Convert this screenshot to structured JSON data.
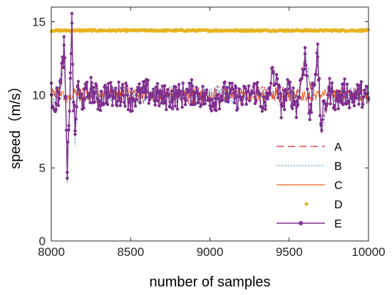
{
  "chart_data": {
    "type": "line",
    "xlabel": "number of samples",
    "ylabel": "speed（m/s）",
    "xlim": [
      8000,
      10000
    ],
    "ylim": [
      0,
      16
    ],
    "x_ticks": [
      8000,
      8500,
      9000,
      9500,
      10000
    ],
    "y_ticks": [
      0,
      5,
      10,
      15
    ],
    "x_tick_labels": [
      "8000",
      "8500",
      "9000",
      "9500",
      "10000"
    ],
    "y_tick_labels": [
      "0",
      "5",
      "10",
      "15"
    ],
    "grid": false,
    "legend_position": "bottom-right",
    "colors": {
      "A": "#d62728",
      "B": "#2f7fc1",
      "C": "#e8601c",
      "D": "#e9b320",
      "E": "#7e2f8e"
    },
    "series": [
      {
        "name": "A",
        "style": "dashed",
        "x": [
          8000,
          8030,
          8060,
          8080,
          8090,
          8100,
          8110,
          8120,
          8130,
          8140,
          8150,
          8165,
          8180,
          8200,
          8250,
          8300,
          8400,
          8500,
          8600,
          8700,
          8800,
          8900,
          9000,
          9100,
          9200,
          9300,
          9400,
          9450,
          9500,
          9550,
          9600,
          9650,
          9680,
          9700,
          9750,
          9800,
          9850,
          9900,
          9950,
          10000
        ],
        "y": [
          10.0,
          9.7,
          10.5,
          12.8,
          10.0,
          4.1,
          7.6,
          11.8,
          14.9,
          9.7,
          7.2,
          10.4,
          10.1,
          9.9,
          10.2,
          9.9,
          10.0,
          10.1,
          9.8,
          10.0,
          10.0,
          9.9,
          10.0,
          10.1,
          9.8,
          10.0,
          10.2,
          9.9,
          10.1,
          9.8,
          12.3,
          9.8,
          12.9,
          7.6,
          10.1,
          9.9,
          10.0,
          10.1,
          9.9,
          10.0
        ]
      },
      {
        "name": "B",
        "style": "dotted",
        "x": [
          8000,
          8030,
          8060,
          8080,
          8090,
          8100,
          8110,
          8120,
          8130,
          8140,
          8150,
          8165,
          8180,
          8200,
          8250,
          8300,
          8400,
          8500,
          8600,
          8700,
          8800,
          8900,
          9000,
          9100,
          9200,
          9300,
          9400,
          9450,
          9500,
          9550,
          9600,
          9650,
          9680,
          9700,
          9750,
          9800,
          9850,
          9900,
          9950,
          10000
        ],
        "y": [
          10.0,
          9.6,
          10.6,
          12.9,
          10.1,
          4.0,
          7.5,
          11.9,
          15.1,
          9.6,
          7.1,
          10.5,
          10.0,
          9.9,
          10.2,
          9.9,
          10.0,
          10.1,
          9.8,
          10.0,
          10.0,
          9.9,
          10.0,
          10.1,
          9.8,
          10.0,
          10.2,
          9.9,
          10.1,
          9.8,
          12.4,
          9.8,
          13.0,
          7.5,
          10.1,
          9.9,
          10.0,
          10.1,
          9.9,
          10.0
        ]
      },
      {
        "name": "C",
        "style": "solid",
        "x": [
          8000,
          8050,
          8100,
          8150,
          8200,
          8250,
          8300,
          8400,
          8500,
          8600,
          8700,
          8800,
          8900,
          9000,
          9100,
          9200,
          9300,
          9400,
          9500,
          9600,
          9700,
          9800,
          9900,
          10000
        ],
        "y": [
          9.9,
          10.3,
          9.6,
          10.2,
          9.8,
          10.1,
          9.9,
          10.0,
          10.1,
          9.9,
          10.0,
          9.9,
          10.1,
          9.9,
          10.0,
          10.1,
          9.9,
          10.0,
          10.1,
          9.9,
          10.0,
          10.1,
          9.9,
          10.0
        ]
      },
      {
        "name": "D",
        "style": "points",
        "x": [
          8000,
          10000
        ],
        "y": [
          14.4,
          14.4
        ]
      },
      {
        "name": "E",
        "style": "solid-marker",
        "x": [
          8000,
          8030,
          8060,
          8080,
          8090,
          8100,
          8110,
          8120,
          8130,
          8140,
          8150,
          8165,
          8180,
          8200,
          8250,
          8300,
          8350,
          8400,
          8450,
          8500,
          8600,
          8700,
          8800,
          8900,
          9000,
          9100,
          9200,
          9300,
          9350,
          9400,
          9450,
          9500,
          9550,
          9600,
          9630,
          9650,
          9680,
          9700,
          9750,
          9800,
          9850,
          9900,
          9950,
          10000
        ],
        "y": [
          10.0,
          9.4,
          10.8,
          13.4,
          9.9,
          4.3,
          7.6,
          11.5,
          14.9,
          9.5,
          7.3,
          10.6,
          9.8,
          9.7,
          10.4,
          9.6,
          10.2,
          9.8,
          10.3,
          9.7,
          10.2,
          9.8,
          9.9,
          10.2,
          9.6,
          10.1,
          9.7,
          10.3,
          9.0,
          11.6,
          9.3,
          10.4,
          9.2,
          12.8,
          8.3,
          10.8,
          12.6,
          7.9,
          10.4,
          9.6,
          10.2,
          9.8,
          10.1,
          9.8
        ]
      }
    ]
  }
}
